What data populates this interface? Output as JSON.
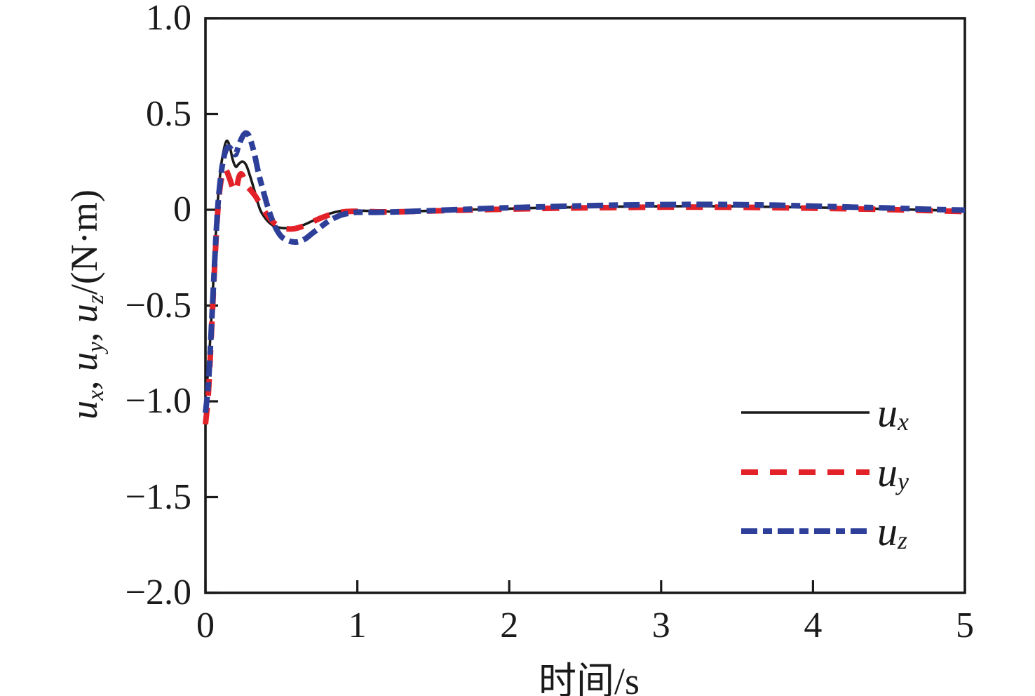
{
  "figure": {
    "background": "#ffffff",
    "frame_color": "#1a1a1a"
  },
  "chart_data": {
    "type": "line",
    "title": "",
    "xlabel": "时间/s",
    "ylabel": "u_x, u_y, u_z/(N·m)",
    "xlim": [
      0,
      5
    ],
    "ylim": [
      -2.0,
      1.0
    ],
    "grid": false,
    "legend_position": "inside lower-right",
    "frame_color": "#1a1a1a",
    "x_ticks": {
      "values": [
        0,
        1,
        2,
        3,
        4,
        5
      ],
      "labels": [
        "0",
        "1",
        "2",
        "3",
        "4",
        "5"
      ]
    },
    "y_ticks": {
      "values": [
        1.0,
        0.5,
        0,
        -0.5,
        -1.0,
        -1.5,
        -2.0
      ],
      "labels": [
        "1.0",
        "0.5",
        "0",
        "−0.5",
        "−1.0",
        "−1.5",
        "−2.0"
      ]
    },
    "series": [
      {
        "name": "u_x",
        "label": {
          "symbol": "u",
          "subscript": "x"
        },
        "color": "#1a1a1a",
        "line_style": "solid",
        "line_width": 3.6,
        "dash": null,
        "points": [
          [
            0,
            -0.97
          ],
          [
            0.02,
            -0.82
          ],
          [
            0.04,
            -0.55
          ],
          [
            0.06,
            -0.25
          ],
          [
            0.08,
            0.03
          ],
          [
            0.1,
            0.21
          ],
          [
            0.12,
            0.31
          ],
          [
            0.14,
            0.36
          ],
          [
            0.16,
            0.33
          ],
          [
            0.18,
            0.26
          ],
          [
            0.2,
            0.225
          ],
          [
            0.22,
            0.24
          ],
          [
            0.245,
            0.252
          ],
          [
            0.27,
            0.23
          ],
          [
            0.3,
            0.16
          ],
          [
            0.33,
            0.08
          ],
          [
            0.36,
            0.0
          ],
          [
            0.4,
            -0.05
          ],
          [
            0.44,
            -0.08
          ],
          [
            0.48,
            -0.092
          ],
          [
            0.52,
            -0.096
          ],
          [
            0.56,
            -0.095
          ],
          [
            0.6,
            -0.09
          ],
          [
            0.65,
            -0.078
          ],
          [
            0.7,
            -0.06
          ],
          [
            0.75,
            -0.042
          ],
          [
            0.8,
            -0.025
          ],
          [
            0.85,
            -0.013
          ],
          [
            0.9,
            -0.006
          ],
          [
            1.0,
            -0.004
          ],
          [
            1.1,
            -0.007
          ],
          [
            1.25,
            -0.009
          ],
          [
            1.4,
            -0.007
          ],
          [
            1.6,
            -0.003
          ],
          [
            1.8,
            0.002
          ],
          [
            2.0,
            0.006
          ],
          [
            2.25,
            0.011
          ],
          [
            2.5,
            0.014
          ],
          [
            2.75,
            0.017
          ],
          [
            3.0,
            0.018
          ],
          [
            3.25,
            0.019
          ],
          [
            3.5,
            0.018
          ],
          [
            3.75,
            0.015
          ],
          [
            4.0,
            0.012
          ],
          [
            4.25,
            0.008
          ],
          [
            4.5,
            0.004
          ],
          [
            4.75,
            -0.001
          ],
          [
            5.0,
            -0.006
          ]
        ]
      },
      {
        "name": "u_y",
        "label": {
          "symbol": "u",
          "subscript": "y"
        },
        "color": "#e32128",
        "line_style": "dashed",
        "line_width": 8,
        "dash": [
          24,
          17
        ],
        "points": [
          [
            0,
            -1.12
          ],
          [
            0.02,
            -0.95
          ],
          [
            0.04,
            -0.63
          ],
          [
            0.06,
            -0.3
          ],
          [
            0.08,
            -0.02
          ],
          [
            0.1,
            0.14
          ],
          [
            0.12,
            0.2
          ],
          [
            0.135,
            0.21
          ],
          [
            0.16,
            0.16
          ],
          [
            0.18,
            0.115
          ],
          [
            0.2,
            0.1
          ],
          [
            0.22,
            0.17
          ],
          [
            0.24,
            0.185
          ],
          [
            0.27,
            0.13
          ],
          [
            0.3,
            0.1
          ],
          [
            0.33,
            0.07
          ],
          [
            0.36,
            0.03
          ],
          [
            0.4,
            -0.02
          ],
          [
            0.44,
            -0.06
          ],
          [
            0.48,
            -0.085
          ],
          [
            0.52,
            -0.097
          ],
          [
            0.57,
            -0.1
          ],
          [
            0.62,
            -0.092
          ],
          [
            0.67,
            -0.075
          ],
          [
            0.72,
            -0.057
          ],
          [
            0.77,
            -0.04
          ],
          [
            0.82,
            -0.026
          ],
          [
            0.87,
            -0.016
          ],
          [
            0.92,
            -0.01
          ],
          [
            1.0,
            -0.008
          ],
          [
            1.15,
            -0.011
          ],
          [
            1.3,
            -0.01
          ],
          [
            1.5,
            -0.006
          ],
          [
            1.7,
            -0.002
          ],
          [
            1.9,
            0.002
          ],
          [
            2.1,
            0.005
          ],
          [
            2.3,
            0.008
          ],
          [
            2.5,
            0.01
          ],
          [
            2.75,
            0.012
          ],
          [
            3.0,
            0.014
          ],
          [
            3.25,
            0.014
          ],
          [
            3.5,
            0.013
          ],
          [
            3.75,
            0.011
          ],
          [
            4.0,
            0.008
          ],
          [
            4.25,
            0.005
          ],
          [
            4.5,
            0.001
          ],
          [
            4.75,
            -0.004
          ],
          [
            5.0,
            -0.009
          ]
        ]
      },
      {
        "name": "u_z",
        "label": {
          "symbol": "u",
          "subscript": "z"
        },
        "color": "#2e3f99",
        "line_style": "dash-dot",
        "line_width": 8,
        "dash": [
          23,
          8,
          13,
          8
        ],
        "points": [
          [
            0,
            -1.06
          ],
          [
            0.02,
            -0.9
          ],
          [
            0.04,
            -0.6
          ],
          [
            0.06,
            -0.28
          ],
          [
            0.08,
            0.0
          ],
          [
            0.1,
            0.17
          ],
          [
            0.12,
            0.27
          ],
          [
            0.14,
            0.32
          ],
          [
            0.16,
            0.325
          ],
          [
            0.18,
            0.3
          ],
          [
            0.2,
            0.29
          ],
          [
            0.22,
            0.34
          ],
          [
            0.25,
            0.39
          ],
          [
            0.27,
            0.4
          ],
          [
            0.29,
            0.38
          ],
          [
            0.32,
            0.3
          ],
          [
            0.35,
            0.19
          ],
          [
            0.38,
            0.1
          ],
          [
            0.42,
            -0.01
          ],
          [
            0.46,
            -0.09
          ],
          [
            0.5,
            -0.14
          ],
          [
            0.55,
            -0.163
          ],
          [
            0.6,
            -0.168
          ],
          [
            0.65,
            -0.155
          ],
          [
            0.7,
            -0.125
          ],
          [
            0.75,
            -0.095
          ],
          [
            0.8,
            -0.065
          ],
          [
            0.85,
            -0.042
          ],
          [
            0.9,
            -0.026
          ],
          [
            0.95,
            -0.017
          ],
          [
            1.0,
            -0.013
          ],
          [
            1.15,
            -0.013
          ],
          [
            1.3,
            -0.01
          ],
          [
            1.5,
            -0.004
          ],
          [
            1.7,
            0.002
          ],
          [
            1.9,
            0.008
          ],
          [
            2.1,
            0.013
          ],
          [
            2.3,
            0.017
          ],
          [
            2.5,
            0.021
          ],
          [
            2.75,
            0.025
          ],
          [
            3.0,
            0.027
          ],
          [
            3.25,
            0.028
          ],
          [
            3.5,
            0.027
          ],
          [
            3.75,
            0.024
          ],
          [
            4.0,
            0.019
          ],
          [
            4.25,
            0.014
          ],
          [
            4.5,
            0.009
          ],
          [
            4.75,
            0.003
          ],
          [
            5.0,
            -0.002
          ]
        ]
      }
    ]
  },
  "x_axis": {
    "label": "时间/s"
  },
  "y_axis": {
    "parts": {
      "u1": "u",
      "s1": "x",
      "c1": ", ",
      "u2": "u",
      "s2": "y",
      "c2": ", ",
      "u3": "u",
      "s3": "z",
      "unit": "/(N·m)"
    }
  },
  "legend": {
    "entries": [
      {
        "symbol": "u",
        "subscript": "x"
      },
      {
        "symbol": "u",
        "subscript": "y"
      },
      {
        "symbol": "u",
        "subscript": "z"
      }
    ]
  }
}
